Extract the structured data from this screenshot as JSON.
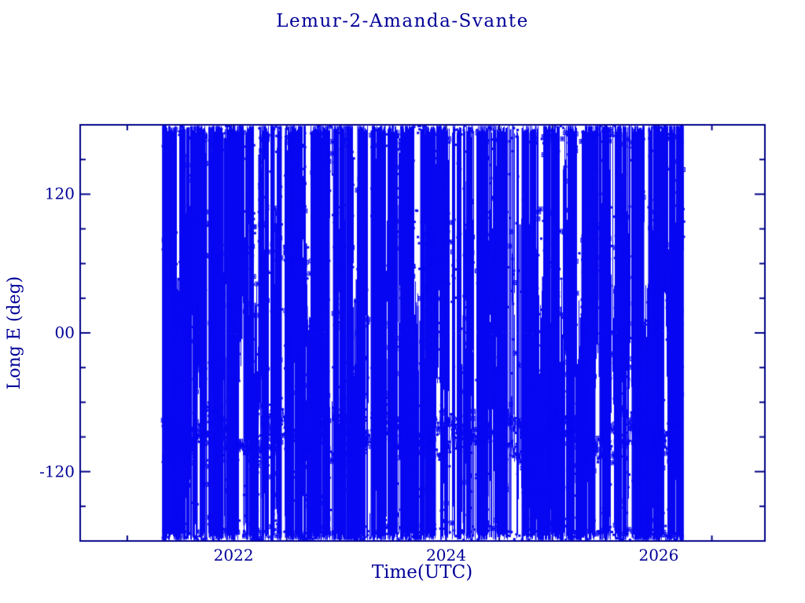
{
  "chart_data": {
    "type": "scatter",
    "title": "Lemur-2-Amanda-Svante",
    "xlabel": "Time(UTC)",
    "ylabel": "Long E (deg)",
    "legend": null,
    "grid": false,
    "background_color": "#ffffff",
    "axis_color": "#000087",
    "text_color": "#000098",
    "data_color": "#0707f2",
    "xlim": [
      2020.557,
      2026.999
    ],
    "ylim": [
      -180,
      180
    ],
    "x_major_ticks": [
      {
        "value": 2022,
        "label": "2022"
      },
      {
        "value": 2024,
        "label": "2024"
      },
      {
        "value": 2026,
        "label": "2026"
      }
    ],
    "x_minor_step": 0.5,
    "y_major_ticks": [
      {
        "value": 120,
        "label": "120"
      },
      {
        "value": 0,
        "label": "00"
      },
      {
        "value": -120,
        "label": "-120"
      }
    ],
    "y_minor_step": 30,
    "series_description": "Sub-satellite longitude (deg E) vs time for Lemur-2-Amanda-Svante; rapid longitude wrapping between -180 and 180 produces a dense texture of near-vertical blue line segments with small square markers, a dense clustered band near -85 deg, a fainter patchy band near +70 deg, and periodic white data gaps.",
    "sim": {
      "seed": 1337,
      "t_start": 2021.334,
      "t_end": 2026.224,
      "dt": 0.003,
      "full_line_prob": 0.55,
      "extra_full_lines": 300,
      "edge_span": 0.022,
      "gaps": [
        [
          2021.458,
          2021.487,
          "top"
        ],
        [
          2021.655,
          2021.684,
          "bottom"
        ],
        [
          2021.742,
          2021.76,
          "full"
        ],
        [
          2021.895,
          2021.912,
          "sparse"
        ],
        [
          2022.048,
          2022.092,
          "bottom"
        ],
        [
          2022.188,
          2022.232,
          "top"
        ],
        [
          2022.33,
          2022.345,
          "sparse"
        ],
        [
          2022.448,
          2022.478,
          "full"
        ],
        [
          2022.565,
          2022.58,
          "sparse"
        ],
        [
          2022.683,
          2022.722,
          "top"
        ],
        [
          2022.898,
          2022.938,
          "full"
        ],
        [
          2023.048,
          2023.062,
          "sparse"
        ],
        [
          2023.122,
          2023.162,
          "top"
        ],
        [
          2023.266,
          2023.292,
          "full"
        ],
        [
          2023.438,
          2023.455,
          "sparse"
        ],
        [
          2023.528,
          2023.552,
          "sparse"
        ],
        [
          2023.698,
          2023.758,
          "top"
        ],
        [
          2023.898,
          2023.942,
          "bottom"
        ],
        [
          2024.0,
          2024.155,
          "sparse"
        ],
        [
          2024.258,
          2024.288,
          "full"
        ],
        [
          2024.428,
          2024.452,
          "sparse"
        ],
        [
          2024.54,
          2024.72,
          "sparse"
        ],
        [
          2024.868,
          2024.91,
          "top"
        ],
        [
          2024.998,
          2025.022,
          "sparse"
        ],
        [
          2025.068,
          2025.1,
          "top"
        ],
        [
          2025.228,
          2025.272,
          "top"
        ],
        [
          2025.398,
          2025.44,
          "bottom"
        ],
        [
          2025.548,
          2025.58,
          "sparse"
        ],
        [
          2025.718,
          2025.752,
          "bottom"
        ],
        [
          2025.858,
          2025.9,
          "top"
        ],
        [
          2026.048,
          2026.082,
          "bottom"
        ]
      ],
      "bands": [
        {
          "center": -84,
          "amp": 10,
          "period": 0.55,
          "phase": 1.3,
          "noise": 5,
          "step": 0.006,
          "density": 0.92,
          "connect": true
        },
        {
          "center": -96,
          "amp": 8,
          "period": 0.82,
          "phase": 4.0,
          "noise": 5,
          "step": 0.007,
          "density": 0.8,
          "connect": true
        },
        {
          "center": 72,
          "amp": 15,
          "period": 0.62,
          "phase": 2.0,
          "noise": 14,
          "step": 0.007,
          "density": 0.6,
          "connect": false,
          "patch_period": 1.35,
          "patch_phase": 0.5
        },
        {
          "center": 170,
          "amp": 5,
          "period": 0.45,
          "phase": 0.3,
          "noise": 4,
          "step": 0.009,
          "density": 0.55,
          "connect": false
        },
        {
          "center": -172,
          "amp": 4,
          "period": 0.5,
          "phase": 2.2,
          "noise": 4,
          "step": 0.008,
          "density": 0.6,
          "connect": false
        }
      ]
    }
  }
}
